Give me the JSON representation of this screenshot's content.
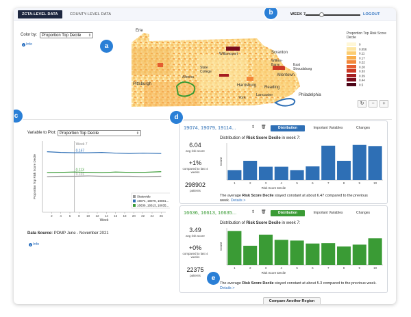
{
  "topbar": {
    "tabs": [
      "ZCTA-LEVEL DATA",
      "COUNTY-LEVEL DATA"
    ],
    "week_label": "WEEK 7",
    "week_slider": {
      "value": 7,
      "min": 1,
      "max": 26
    },
    "logout": "LOGOUT"
  },
  "badges": {
    "a": "a",
    "b": "b",
    "c": "c",
    "d": "d",
    "e": "e"
  },
  "map_panel": {
    "color_by_label": "Color by:",
    "color_by_value": "Proportion Top Decile",
    "info_label": "Info",
    "city_labels": [
      "Erie",
      "Scranton",
      "Wilkes-Barre",
      "Allentown",
      "East Stroudsburg",
      "Pittsburgh",
      "Harrisburg",
      "Reading",
      "Philadelphia",
      "Lancaster",
      "York",
      "Altoona",
      "State College",
      "Williamsport"
    ],
    "legend_title": "Proportion Top Risk Score Decile",
    "legend": [
      {
        "label": "0",
        "color": "#fff7d6"
      },
      {
        "label": "0.056",
        "color": "#fde6a3"
      },
      {
        "label": "0.11",
        "color": "#fccd71"
      },
      {
        "label": "0.17",
        "color": "#f8ad4b"
      },
      {
        "label": "0.22",
        "color": "#f3873a"
      },
      {
        "label": "0.28",
        "color": "#e45d30"
      },
      {
        "label": "0.33",
        "color": "#cc3a26"
      },
      {
        "label": "0.39",
        "color": "#a51d20"
      },
      {
        "label": "0.44",
        "color": "#7a0c1c"
      },
      {
        "label": "0.5",
        "color": "#4d0518"
      }
    ],
    "buttons": {
      "reset": "↻",
      "zoom_out": "−",
      "zoom_in": "+"
    }
  },
  "line_panel": {
    "variable_label": "Variable to Plot:",
    "variable_value": "Proportion Top Decile",
    "datasource_label": "Data Source:",
    "datasource_value": "PDMP June - November 2021",
    "info_label": "Info"
  },
  "chart_data": {
    "type": "line",
    "xlabel": "Week",
    "ylabel": "Proportion Top Risk Score Decile",
    "xlim": [
      0,
      27
    ],
    "ylim": [
      0,
      0.2
    ],
    "x_ticks": [
      2,
      4,
      6,
      8,
      10,
      12,
      14,
      16,
      18,
      20,
      22,
      24,
      26
    ],
    "marker": {
      "x": 7,
      "label": "Week 7"
    },
    "series": [
      {
        "name": "Statewide",
        "color": "#999999",
        "label": "0.101",
        "x": [
          1,
          4,
          7,
          10,
          13,
          16,
          19,
          22,
          26
        ],
        "y": [
          0.1,
          0.101,
          0.101,
          0.102,
          0.101,
          0.101,
          0.101,
          0.1,
          0.101
        ]
      },
      {
        "name": "19074, 19079, 19081...",
        "color": "#2e6fb5",
        "label": "0.167",
        "x": [
          1,
          4,
          7,
          10,
          13,
          16,
          19,
          22,
          26
        ],
        "y": [
          0.17,
          0.168,
          0.167,
          0.167,
          0.168,
          0.166,
          0.165,
          0.166,
          0.165
        ]
      },
      {
        "name": "16636, 16613, 16635...",
        "color": "#3a9b35",
        "label": "0.113",
        "x": [
          1,
          4,
          7,
          10,
          13,
          16,
          19,
          22,
          26
        ],
        "y": [
          0.111,
          0.112,
          0.113,
          0.112,
          0.111,
          0.113,
          0.112,
          0.112,
          0.114
        ]
      }
    ],
    "legend_placement": "bottom-right"
  },
  "cards": [
    {
      "title": "19074, 19079, 19114...",
      "color": "#2e6fb5",
      "tabs": [
        "Distribution",
        "Important Variables",
        "Changes"
      ],
      "avg_value": "6.04",
      "avg_label": "avg risk score",
      "change_value": "+1%",
      "change_label": "compared to last 4 weeks",
      "patients_value": "298902",
      "patients_label": "patients",
      "dist_title_prefix": "Distribution of",
      "dist_title_bold": "Risk Score Decile",
      "dist_title_suffix": "in week 7:",
      "ylabel": "Count",
      "xlabel": "Risk Score Decile",
      "categories": [
        1,
        2,
        3,
        4,
        5,
        6,
        7,
        8,
        9,
        10
      ],
      "values": [
        0.27,
        0.52,
        0.36,
        0.36,
        0.27,
        0.37,
        0.93,
        0.52,
        0.95,
        0.92
      ],
      "summary_prefix": "The average",
      "summary_bold": "Risk Score Decile",
      "summary_suffix": "stayed constant at about 6.47 compared to the previous week.",
      "details": "Details >"
    },
    {
      "title": "16636, 16613, 16635...",
      "color": "#3a9b35",
      "tabs": [
        "Distribution",
        "Important Variables",
        "Changes"
      ],
      "avg_value": "3.49",
      "avg_label": "avg risk score",
      "change_value": "+0%",
      "change_label": "compared to last 4 weeks",
      "patients_value": "22375",
      "patients_label": "patients",
      "dist_title_prefix": "Distribution of",
      "dist_title_bold": "Risk Score Decile",
      "dist_title_suffix": "in week 7:",
      "ylabel": "Count",
      "xlabel": "Risk Score Decile",
      "categories": [
        1,
        2,
        3,
        4,
        5,
        6,
        7,
        8,
        9,
        10
      ],
      "values": [
        0.92,
        0.52,
        0.82,
        0.68,
        0.66,
        0.58,
        0.59,
        0.5,
        0.55,
        0.72
      ],
      "summary_prefix": "The average",
      "summary_bold": "Risk Score Decile",
      "summary_suffix": "stayed constant at about 5.3 compared to the previous week.",
      "details": "Details >"
    }
  ],
  "compare_button": "Compare Another Region"
}
